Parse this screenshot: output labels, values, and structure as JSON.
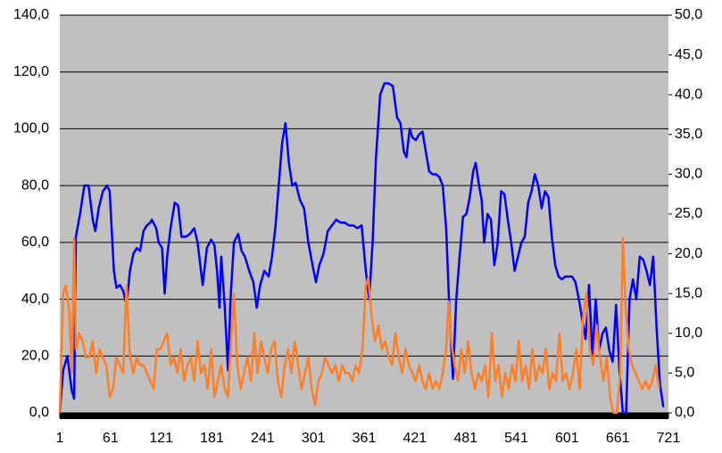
{
  "chart_data": {
    "type": "line",
    "xlim": [
      1,
      721
    ],
    "xticks": [
      1,
      61,
      121,
      181,
      241,
      301,
      361,
      421,
      481,
      541,
      601,
      661,
      721
    ],
    "ylim": [
      0,
      140
    ],
    "yticks": [
      {
        "value": 0,
        "label": "0,0"
      },
      {
        "value": 20,
        "label": "20,0"
      },
      {
        "value": 40,
        "label": "40,0"
      },
      {
        "value": 60,
        "label": "60,0"
      },
      {
        "value": 80,
        "label": "80,0"
      },
      {
        "value": 100,
        "label": "100,0"
      },
      {
        "value": 120,
        "label": "120,0"
      },
      {
        "value": 140,
        "label": "140,0"
      }
    ],
    "y2lim": [
      0,
      50
    ],
    "y2ticks": [
      {
        "value": 0,
        "label": "0,0"
      },
      {
        "value": 5,
        "label": "5,0"
      },
      {
        "value": 10,
        "label": "10,0"
      },
      {
        "value": 15,
        "label": "15,0"
      },
      {
        "value": 20,
        "label": "20,0"
      },
      {
        "value": 25,
        "label": "25,0"
      },
      {
        "value": 30,
        "label": "30,0"
      },
      {
        "value": 35,
        "label": "35,0"
      },
      {
        "value": 40,
        "label": "40,0"
      },
      {
        "value": 45,
        "label": "45,0"
      },
      {
        "value": 50,
        "label": "50,0"
      }
    ],
    "grid": true,
    "series": [
      {
        "color": "#0000ff",
        "x": [
          1,
          5,
          10,
          15,
          18,
          20,
          25,
          30,
          35,
          40,
          43,
          47,
          52,
          57,
          60,
          65,
          68,
          72,
          76,
          80,
          84,
          88,
          92,
          96,
          100,
          104,
          108,
          110,
          115,
          118,
          122,
          125,
          128,
          132,
          137,
          141,
          145,
          150,
          155,
          160,
          164,
          170,
          175,
          180,
          184,
          187,
          190,
          192,
          196,
          200,
          203,
          207,
          212,
          216,
          220,
          225,
          230,
          234,
          238,
          243,
          248,
          252,
          256,
          260,
          264,
          268,
          272,
          276,
          280,
          285,
          290,
          295,
          300,
          304,
          308,
          313,
          318,
          323,
          328,
          333,
          338,
          343,
          348,
          353,
          358,
          363,
          367,
          371,
          375,
          380,
          385,
          390,
          395,
          400,
          404,
          408,
          411,
          415,
          418,
          422,
          426,
          430,
          434,
          438,
          442,
          446,
          450,
          454,
          458,
          462,
          466,
          470,
          474,
          478,
          482,
          486,
          490,
          493,
          497,
          500,
          503,
          507,
          511,
          515,
          519,
          523,
          527,
          531,
          535,
          539,
          543,
          547,
          551,
          555,
          559,
          563,
          567,
          571,
          575,
          579,
          583,
          587,
          591,
          595,
          599,
          603,
          607,
          611,
          615,
          619,
          623,
          627,
          631,
          635,
          639,
          643,
          647,
          651,
          655,
          659,
          663,
          667,
          671,
          675,
          679,
          683,
          687,
          691,
          695,
          699,
          703,
          707,
          711,
          715
        ],
        "values": [
          0,
          15,
          20,
          8,
          5,
          62,
          70,
          80,
          80,
          68,
          64,
          72,
          78,
          80,
          78,
          50,
          44,
          45,
          43,
          38,
          50,
          56,
          58,
          57,
          64,
          66,
          67,
          68,
          65,
          60,
          58,
          42,
          55,
          65,
          74,
          73,
          62,
          62,
          63,
          65,
          60,
          45,
          58,
          61,
          59,
          50,
          37,
          55,
          38,
          15,
          40,
          60,
          63,
          57,
          55,
          50,
          46,
          37,
          45,
          50,
          48,
          55,
          65,
          80,
          95,
          102,
          88,
          80,
          81,
          75,
          72,
          60,
          52,
          46,
          52,
          56,
          64,
          66,
          68,
          67,
          67,
          66,
          66,
          65,
          66,
          50,
          40,
          60,
          90,
          112,
          116,
          116,
          115,
          104,
          102,
          92,
          90,
          100,
          97,
          96,
          98,
          99,
          92,
          85,
          84,
          84,
          83,
          80,
          65,
          35,
          12,
          40,
          55,
          69,
          70,
          76,
          85,
          88,
          80,
          75,
          60,
          70,
          68,
          52,
          60,
          78,
          77,
          68,
          60,
          50,
          55,
          60,
          62,
          74,
          78,
          84,
          80,
          72,
          78,
          76,
          62,
          52,
          48,
          47,
          48,
          48,
          48,
          46,
          40,
          33,
          26,
          45,
          20,
          40,
          22,
          28,
          30,
          22,
          18,
          38,
          15,
          0,
          0,
          40,
          47,
          40,
          55,
          54,
          50,
          45,
          55,
          30,
          10,
          2
        ]
      },
      {
        "color": "#ff7f27",
        "axis": "y2",
        "x": [
          1,
          5,
          8,
          12,
          15,
          18,
          20,
          24,
          28,
          32,
          36,
          40,
          44,
          48,
          52,
          56,
          60,
          64,
          68,
          72,
          76,
          80,
          84,
          88,
          92,
          96,
          100,
          104,
          108,
          112,
          116,
          120,
          124,
          128,
          132,
          136,
          140,
          144,
          148,
          152,
          156,
          160,
          164,
          168,
          172,
          176,
          180,
          184,
          188,
          192,
          196,
          200,
          203,
          207,
          211,
          215,
          219,
          223,
          227,
          231,
          235,
          239,
          243,
          247,
          251,
          255,
          259,
          263,
          267,
          271,
          275,
          279,
          283,
          287,
          291,
          295,
          299,
          303,
          307,
          311,
          315,
          319,
          323,
          327,
          331,
          335,
          339,
          343,
          347,
          351,
          355,
          359,
          363,
          366,
          370,
          374,
          378,
          382,
          386,
          390,
          394,
          398,
          402,
          406,
          410,
          414,
          418,
          422,
          426,
          430,
          434,
          438,
          442,
          446,
          450,
          454,
          458,
          461,
          464,
          468,
          472,
          476,
          480,
          484,
          488,
          492,
          496,
          500,
          504,
          508,
          512,
          516,
          520,
          524,
          528,
          532,
          536,
          540,
          544,
          548,
          552,
          556,
          560,
          564,
          568,
          572,
          576,
          580,
          584,
          588,
          592,
          596,
          600,
          604,
          608,
          612,
          616,
          620,
          624,
          628,
          632,
          636,
          640,
          644,
          648,
          652,
          656,
          660,
          664,
          667,
          670,
          674,
          678,
          682,
          686,
          690,
          694,
          698,
          702,
          706,
          710
        ],
        "values": [
          0,
          15,
          16,
          13,
          5,
          22,
          8,
          10,
          9,
          7,
          7,
          9,
          5,
          8,
          7,
          6,
          2,
          3,
          7,
          6,
          5,
          16,
          7,
          5,
          7,
          6,
          6,
          5,
          4,
          3,
          8,
          8,
          9,
          10,
          6,
          7,
          5,
          8,
          4,
          6,
          7,
          4,
          9,
          5,
          6,
          3,
          8,
          2,
          4,
          6,
          3,
          2,
          8,
          15,
          6,
          3,
          5,
          7,
          4,
          10,
          5,
          9,
          7,
          5,
          8,
          9,
          4,
          2,
          6,
          8,
          5,
          9,
          6,
          3,
          5,
          7,
          3,
          1,
          4,
          5,
          7,
          6,
          5,
          6,
          4,
          6,
          5,
          5,
          4,
          6,
          5,
          8,
          16,
          17,
          12,
          9,
          11,
          8,
          9,
          7,
          6,
          10,
          7,
          5,
          8,
          6,
          5,
          4,
          6,
          4,
          3,
          5,
          3,
          4,
          3,
          5,
          8,
          14,
          9,
          6,
          4,
          8,
          5,
          9,
          5,
          3,
          5,
          4,
          6,
          2,
          10,
          4,
          6,
          2,
          5,
          3,
          6,
          4,
          9,
          4,
          6,
          3,
          8,
          4,
          6,
          5,
          8,
          3,
          5,
          4,
          10,
          4,
          5,
          3,
          5,
          8,
          3,
          12,
          15,
          8,
          6,
          11,
          7,
          4,
          7,
          2,
          0,
          0,
          5,
          22,
          14,
          8,
          6,
          5,
          4,
          3,
          4,
          3,
          4,
          6,
          3
        ]
      }
    ]
  }
}
